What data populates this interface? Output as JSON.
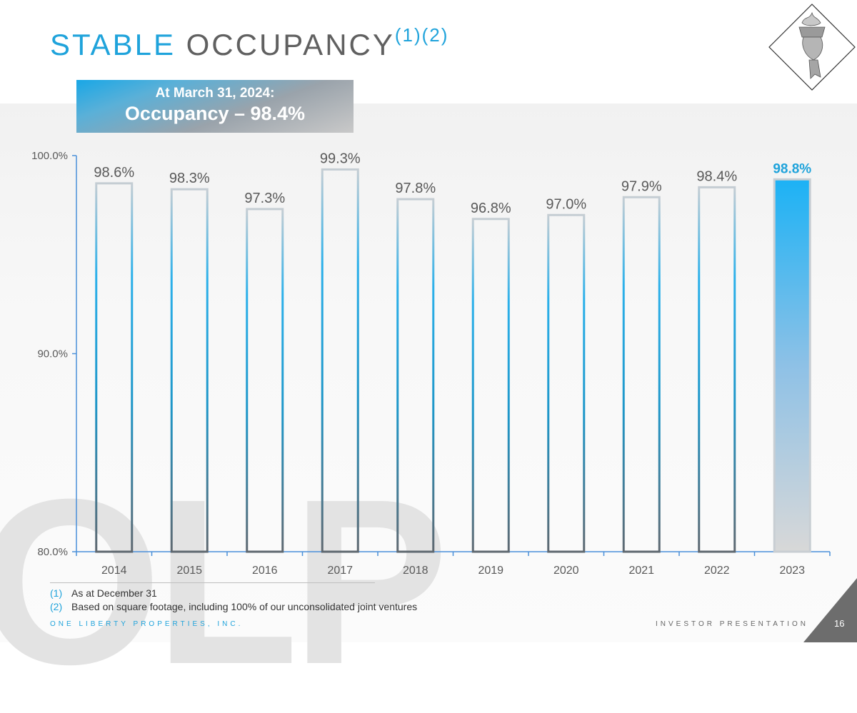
{
  "title": {
    "word1": "STABLE",
    "word2": "OCCUPANCY",
    "superscript": "(1)(2)"
  },
  "callout": {
    "line1": "At March 31, 2024:",
    "line2": "Occupancy – 98.4%"
  },
  "watermark": "OLP",
  "chart_data": {
    "type": "bar",
    "categories": [
      "2014",
      "2015",
      "2016",
      "2017",
      "2018",
      "2019",
      "2020",
      "2021",
      "2022",
      "2023"
    ],
    "values": [
      98.6,
      98.3,
      97.3,
      99.3,
      97.8,
      96.8,
      97.0,
      97.9,
      98.4,
      98.8
    ],
    "labels": [
      "98.6%",
      "98.3%",
      "97.3%",
      "99.3%",
      "97.8%",
      "96.8%",
      "97.0%",
      "97.9%",
      "98.4%",
      "98.8%"
    ],
    "ylim": [
      80,
      100
    ],
    "yticks": [
      80,
      90,
      100
    ],
    "ytick_labels": [
      "80.0%",
      "90.0%",
      "100.0%"
    ],
    "highlight_index": 9,
    "title": "",
    "xlabel": "",
    "ylabel": "",
    "grid": false,
    "colors": {
      "highlight_label": "#1fa3db",
      "bar_label": "#595959",
      "axis": "#4a90d9"
    }
  },
  "footnotes": [
    {
      "num": "(1)",
      "text": "As at December 31"
    },
    {
      "num": "(2)",
      "text": "Based on square footage, including 100% of our unconsolidated joint ventures"
    }
  ],
  "footer": {
    "company": "ONE LIBERTY PROPERTIES, INC.",
    "label": "INVESTOR PRESENTATION",
    "page": "16"
  },
  "colors": {
    "accent": "#1fa3db",
    "text": "#606060"
  }
}
